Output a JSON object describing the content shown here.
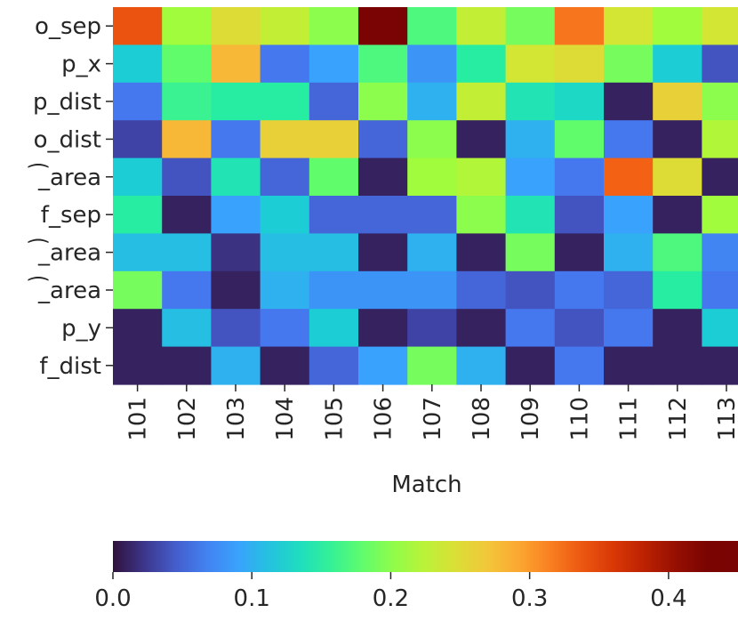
{
  "chart_data": {
    "type": "heatmap",
    "xlabel": "Match",
    "x_categories": [
      "101",
      "102",
      "103",
      "104",
      "105",
      "106",
      "107",
      "108",
      "109",
      "110",
      "111",
      "112",
      "113"
    ],
    "y_categories": [
      "o_sep",
      "p_x",
      "p_dist",
      "o_dist",
      "͡_area",
      "f_sep",
      "͡_area",
      "͡_area",
      "p_y",
      "f_dist"
    ],
    "values": [
      [
        0.34,
        0.21,
        0.25,
        0.23,
        0.2,
        0.45,
        0.17,
        0.23,
        0.19,
        0.32,
        0.24,
        0.21,
        0.24
      ],
      [
        0.12,
        0.18,
        0.28,
        0.06,
        0.09,
        0.17,
        0.08,
        0.15,
        0.24,
        0.25,
        0.19,
        0.12,
        0.04
      ],
      [
        0.06,
        0.16,
        0.15,
        0.15,
        0.05,
        0.2,
        0.1,
        0.23,
        0.14,
        0.13,
        0.01,
        0.26,
        0.2
      ],
      [
        0.03,
        0.28,
        0.06,
        0.26,
        0.26,
        0.05,
        0.2,
        0.01,
        0.1,
        0.18,
        0.06,
        0.01,
        0.22
      ],
      [
        0.12,
        0.04,
        0.14,
        0.05,
        0.18,
        0.01,
        0.21,
        0.22,
        0.09,
        0.06,
        0.33,
        0.25,
        0.01
      ],
      [
        0.15,
        0.01,
        0.09,
        0.12,
        0.05,
        0.05,
        0.05,
        0.2,
        0.14,
        0.04,
        0.09,
        0.01,
        0.21
      ],
      [
        0.11,
        0.11,
        0.02,
        0.11,
        0.11,
        0.01,
        0.1,
        0.01,
        0.19,
        0.01,
        0.1,
        0.17,
        0.07
      ],
      [
        0.19,
        0.06,
        0.01,
        0.1,
        0.08,
        0.08,
        0.08,
        0.05,
        0.04,
        0.06,
        0.05,
        0.15,
        0.06
      ],
      [
        0.01,
        0.11,
        0.04,
        0.06,
        0.12,
        0.01,
        0.03,
        0.01,
        0.06,
        0.04,
        0.06,
        0.01,
        0.12
      ],
      [
        0.01,
        0.01,
        0.1,
        0.01,
        0.05,
        0.09,
        0.19,
        0.1,
        0.01,
        0.06,
        0.01,
        0.01,
        0.01
      ]
    ],
    "colorbar": {
      "colormap": "turbo",
      "vmin": 0.0,
      "vmax": 0.45,
      "ticks": [
        0.0,
        0.1,
        0.2,
        0.3,
        0.4
      ],
      "tick_labels": [
        "0.0",
        "0.1",
        "0.2",
        "0.3",
        "0.4"
      ],
      "orientation": "horizontal",
      "placement": "bottom"
    },
    "grid": false
  }
}
